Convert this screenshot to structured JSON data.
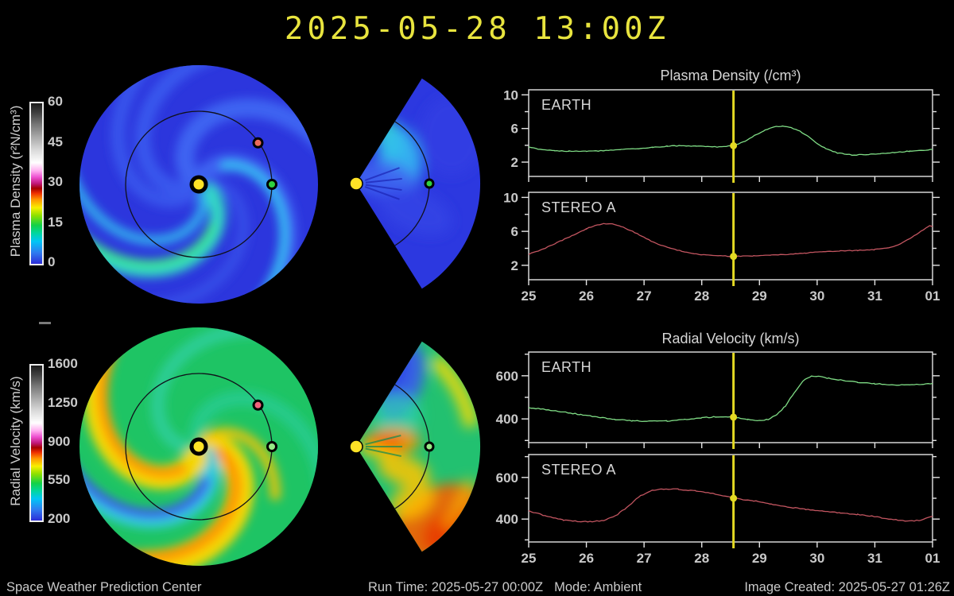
{
  "header": {
    "timestamp": "2025-05-28 13:00Z"
  },
  "footer": {
    "org": "Space Weather Prediction Center",
    "run_time": "Run Time: 2025-05-27 00:00Z",
    "mode": "Mode: Ambient",
    "image_created": "Image Created: 2025-05-27 01:26Z"
  },
  "colorbars": [
    {
      "id": "plasma-density",
      "label": "Plasma Density (r²N/cm³)",
      "tick_labels": [
        "60",
        "45",
        "30",
        "15",
        "0"
      ]
    },
    {
      "id": "radial-velocity",
      "label": "Radial Velocity (km/s)",
      "tick_labels": [
        "1600",
        "1250",
        "900",
        "550",
        "200"
      ]
    }
  ],
  "map_markers": {
    "sun_color": "#ffe226",
    "earth_color": "#2fd13f",
    "earth_color_velocity": "#96ea86",
    "stereo_a_color": "#ec6a5a",
    "stereo_a_color_velocity": "#f2617c",
    "orbit_color": "#10101a"
  },
  "cursor": {
    "day": 28.55,
    "color": "#e3d923"
  },
  "chart_data": [
    {
      "type": "line",
      "group_title": "Plasma Density (/cm³)",
      "series": "EARTH",
      "color": "#7fdc85",
      "ylim": [
        0.3,
        10.6
      ],
      "yticks_major": [
        2,
        6,
        10
      ],
      "yticks_minor": [
        4,
        8
      ],
      "xticks": [
        25,
        26,
        27,
        28,
        29,
        30,
        31,
        32
      ],
      "xtick_labels": [
        "25",
        "26",
        "27",
        "28",
        "29",
        "30",
        "31",
        "01"
      ],
      "show_x_labels": false,
      "cursor_y": 3.95,
      "x": [
        25.0,
        25.2,
        25.45,
        25.7,
        26.0,
        26.3,
        26.6,
        26.9,
        27.15,
        27.4,
        27.65,
        27.9,
        28.1,
        28.3,
        28.55,
        28.75,
        28.95,
        29.1,
        29.25,
        29.4,
        29.55,
        29.7,
        29.85,
        30.0,
        30.15,
        30.35,
        30.6,
        30.85,
        31.1,
        31.35,
        31.6,
        31.8,
        32.0
      ],
      "y": [
        3.8,
        3.5,
        3.35,
        3.3,
        3.3,
        3.35,
        3.5,
        3.6,
        3.75,
        3.9,
        3.95,
        3.9,
        3.85,
        3.8,
        3.95,
        4.5,
        5.3,
        5.8,
        6.2,
        6.3,
        6.1,
        5.7,
        5.0,
        4.2,
        3.6,
        3.1,
        2.85,
        2.9,
        3.0,
        3.15,
        3.3,
        3.4,
        3.5
      ]
    },
    {
      "type": "line",
      "series": "STEREO A",
      "color": "#c25560",
      "ylim": [
        0.3,
        10.6
      ],
      "yticks_major": [
        2,
        6,
        10
      ],
      "yticks_minor": [
        4,
        8
      ],
      "xticks": [
        25,
        26,
        27,
        28,
        29,
        30,
        31,
        32
      ],
      "xtick_labels": [
        "25",
        "26",
        "27",
        "28",
        "29",
        "30",
        "31",
        "01"
      ],
      "show_x_labels": true,
      "cursor_y": 3.05,
      "x": [
        25.0,
        25.25,
        25.5,
        25.75,
        26.0,
        26.15,
        26.3,
        26.45,
        26.6,
        26.8,
        27.0,
        27.2,
        27.45,
        27.7,
        27.95,
        28.2,
        28.55,
        28.9,
        29.2,
        29.5,
        29.8,
        30.1,
        30.4,
        30.7,
        31.0,
        31.2,
        31.4,
        31.6,
        31.8,
        31.95,
        32.0
      ],
      "y": [
        3.3,
        3.9,
        4.7,
        5.5,
        6.3,
        6.7,
        6.9,
        6.85,
        6.6,
        6.0,
        5.3,
        4.6,
        4.0,
        3.6,
        3.3,
        3.15,
        3.05,
        3.1,
        3.2,
        3.3,
        3.45,
        3.6,
        3.7,
        3.75,
        3.85,
        4.0,
        4.4,
        5.1,
        6.0,
        6.7,
        6.6
      ]
    },
    {
      "type": "line",
      "group_title": "Radial Velocity (km/s)",
      "series": "EARTH",
      "color": "#7fdc85",
      "ylim": [
        290,
        710
      ],
      "yticks_major": [
        400,
        600
      ],
      "yticks_minor": [
        300,
        500,
        700
      ],
      "xticks": [
        25,
        26,
        27,
        28,
        29,
        30,
        31,
        32
      ],
      "xtick_labels": [
        "25",
        "26",
        "27",
        "28",
        "29",
        "30",
        "31",
        "01"
      ],
      "show_x_labels": false,
      "cursor_y": 408,
      "x": [
        25.0,
        25.3,
        25.6,
        25.9,
        26.2,
        26.5,
        26.8,
        27.1,
        27.4,
        27.7,
        28.0,
        28.25,
        28.55,
        28.8,
        29.0,
        29.15,
        29.3,
        29.45,
        29.6,
        29.75,
        29.9,
        30.05,
        30.2,
        30.45,
        30.7,
        31.0,
        31.3,
        31.6,
        31.8,
        32.0
      ],
      "y": [
        452,
        443,
        432,
        420,
        408,
        398,
        391,
        389,
        391,
        397,
        405,
        410,
        408,
        397,
        393,
        398,
        418,
        460,
        520,
        575,
        600,
        597,
        588,
        578,
        570,
        563,
        558,
        558,
        561,
        565
      ]
    },
    {
      "type": "line",
      "series": "STEREO A",
      "color": "#c25560",
      "ylim": [
        290,
        710
      ],
      "yticks_major": [
        400,
        600
      ],
      "yticks_minor": [
        300,
        500,
        700
      ],
      "xticks": [
        25,
        26,
        27,
        28,
        29,
        30,
        31,
        32
      ],
      "xtick_labels": [
        "25",
        "26",
        "27",
        "28",
        "29",
        "30",
        "31",
        "01"
      ],
      "show_x_labels": true,
      "cursor_y": 500,
      "x": [
        25.0,
        25.3,
        25.6,
        25.9,
        26.1,
        26.3,
        26.5,
        26.7,
        26.9,
        27.1,
        27.3,
        27.6,
        27.9,
        28.2,
        28.55,
        28.9,
        29.2,
        29.5,
        29.8,
        30.1,
        30.4,
        30.7,
        31.0,
        31.2,
        31.4,
        31.6,
        31.8,
        32.0
      ],
      "y": [
        440,
        415,
        395,
        388,
        388,
        393,
        415,
        455,
        505,
        535,
        545,
        543,
        536,
        522,
        500,
        488,
        472,
        458,
        447,
        438,
        430,
        422,
        412,
        403,
        395,
        390,
        395,
        413
      ]
    }
  ]
}
